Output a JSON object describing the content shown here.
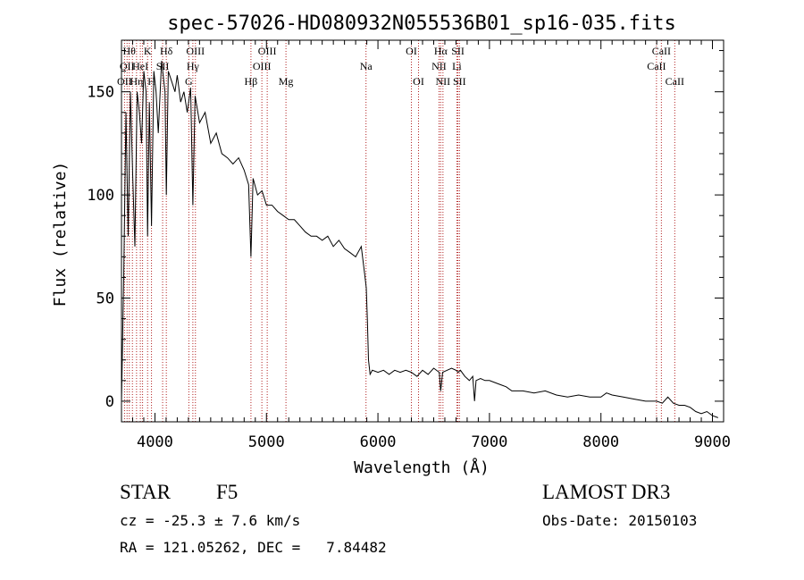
{
  "chart_data": {
    "type": "line",
    "title": "spec-57026-HD080932N055536B01_sp16-035.fits",
    "xlabel": "Wavelength (Å)",
    "ylabel": "Flux (relative)",
    "xlim": [
      3700,
      9100
    ],
    "ylim": [
      -10,
      175
    ],
    "x_ticks": [
      4000,
      5000,
      6000,
      7000,
      8000,
      9000
    ],
    "y_ticks": [
      0,
      50,
      100,
      150
    ],
    "x_tick_labels": [
      "4000",
      "5000",
      "6000",
      "7000",
      "8000",
      "9000"
    ],
    "y_tick_labels": [
      "0",
      "50",
      "100",
      "150"
    ],
    "grid": false,
    "line_color": "#000000",
    "marker_color": "#b22222",
    "series": [
      {
        "x": [
          3700,
          3720,
          3740,
          3760,
          3780,
          3800,
          3820,
          3840,
          3860,
          3880,
          3900,
          3920,
          3934,
          3950,
          3969,
          3990,
          4010,
          4030,
          4060,
          4090,
          4102,
          4120,
          4150,
          4180,
          4200,
          4230,
          4260,
          4290,
          4320,
          4340,
          4360,
          4400,
          4450,
          4500,
          4550,
          4600,
          4650,
          4700,
          4750,
          4800,
          4840,
          4861,
          4880,
          4920,
          4960,
          5000,
          5050,
          5100,
          5150,
          5200,
          5250,
          5300,
          5350,
          5400,
          5450,
          5500,
          5550,
          5600,
          5650,
          5700,
          5750,
          5800,
          5850,
          5880,
          5895,
          5905,
          5915,
          5930,
          5950,
          6000,
          6050,
          6100,
          6150,
          6200,
          6250,
          6300,
          6350,
          6400,
          6450,
          6500,
          6550,
          6563,
          6580,
          6620,
          6660,
          6700,
          6720,
          6740,
          6780,
          6820,
          6850,
          6866,
          6880,
          6920,
          6960,
          7000,
          7050,
          7100,
          7150,
          7200,
          7300,
          7400,
          7500,
          7600,
          7700,
          7800,
          7900,
          8000,
          8050,
          8100,
          8200,
          8300,
          8400,
          8500,
          8550,
          8600,
          8650,
          8700,
          8750,
          8800,
          8850,
          8900,
          8950,
          9000,
          9050
        ],
        "values": [
          0,
          60,
          140,
          80,
          150,
          110,
          75,
          150,
          140,
          125,
          160,
          150,
          80,
          145,
          85,
          160,
          150,
          130,
          165,
          150,
          100,
          160,
          155,
          150,
          158,
          145,
          150,
          140,
          152,
          95,
          148,
          135,
          140,
          125,
          130,
          120,
          118,
          115,
          118,
          112,
          105,
          70,
          108,
          100,
          102,
          95,
          95,
          92,
          90,
          88,
          88,
          85,
          82,
          80,
          80,
          78,
          80,
          75,
          78,
          74,
          72,
          70,
          75,
          62,
          55,
          40,
          20,
          13,
          15,
          14,
          15,
          13,
          15,
          14,
          15,
          14,
          12,
          15,
          13,
          16,
          14,
          5,
          14,
          15,
          16,
          15,
          14,
          15,
          12,
          10,
          12,
          0,
          10,
          11,
          10,
          10,
          9,
          8,
          7,
          5,
          5,
          4,
          5,
          3,
          2,
          3,
          2,
          2,
          4,
          3,
          2,
          1,
          0,
          0,
          -1,
          2,
          -1,
          -2,
          -2,
          -3,
          -5,
          -6,
          -5,
          -7,
          -8
        ]
      }
    ],
    "line_markers": [
      {
        "wl": 3727,
        "label": "OII",
        "row": 2
      },
      {
        "wl": 3750,
        "label": "OII",
        "row": 1
      },
      {
        "wl": 3770,
        "label": "Hθ",
        "row": 0
      },
      {
        "wl": 3798,
        "label": "",
        "row": 0
      },
      {
        "wl": 3835,
        "label": "Hη",
        "row": 2
      },
      {
        "wl": 3869,
        "label": "HeI",
        "row": 1
      },
      {
        "wl": 3889,
        "label": "",
        "row": 1
      },
      {
        "wl": 3934,
        "label": "K",
        "row": 0
      },
      {
        "wl": 3969,
        "label": "H",
        "row": 2
      },
      {
        "wl": 4069,
        "label": "SII",
        "row": 1
      },
      {
        "wl": 4102,
        "label": "Hδ",
        "row": 0
      },
      {
        "wl": 4304,
        "label": "G",
        "row": 2
      },
      {
        "wl": 4340,
        "label": "Hγ",
        "row": 1
      },
      {
        "wl": 4363,
        "label": "OIII",
        "row": 0
      },
      {
        "wl": 4861,
        "label": "Hβ",
        "row": 2
      },
      {
        "wl": 4959,
        "label": "OIII",
        "row": 1
      },
      {
        "wl": 5007,
        "label": "OIII",
        "row": 0
      },
      {
        "wl": 5175,
        "label": "Mg",
        "row": 2
      },
      {
        "wl": 5893,
        "label": "Na",
        "row": 1
      },
      {
        "wl": 6300,
        "label": "OI",
        "row": 0
      },
      {
        "wl": 6364,
        "label": "OI",
        "row": 2
      },
      {
        "wl": 6548,
        "label": "NII",
        "row": 1
      },
      {
        "wl": 6563,
        "label": "Hα",
        "row": 0
      },
      {
        "wl": 6583,
        "label": "NII",
        "row": 2
      },
      {
        "wl": 6708,
        "label": "Li",
        "row": 1
      },
      {
        "wl": 6717,
        "label": "SII",
        "row": 0
      },
      {
        "wl": 6731,
        "label": "SII",
        "row": 2
      },
      {
        "wl": 8498,
        "label": "CaII",
        "row": 1
      },
      {
        "wl": 8542,
        "label": "CaII",
        "row": 0
      },
      {
        "wl": 8662,
        "label": "CaII",
        "row": 2
      }
    ]
  },
  "info": {
    "object_class": "STAR",
    "subclass": "F5",
    "survey": "LAMOST DR3",
    "cz_text": "cz = -25.3 ± 7.6 km/s",
    "obs_date_text": "Obs-Date: 20150103",
    "coords_text": "RA = 121.05262, DEC =   7.84482"
  }
}
